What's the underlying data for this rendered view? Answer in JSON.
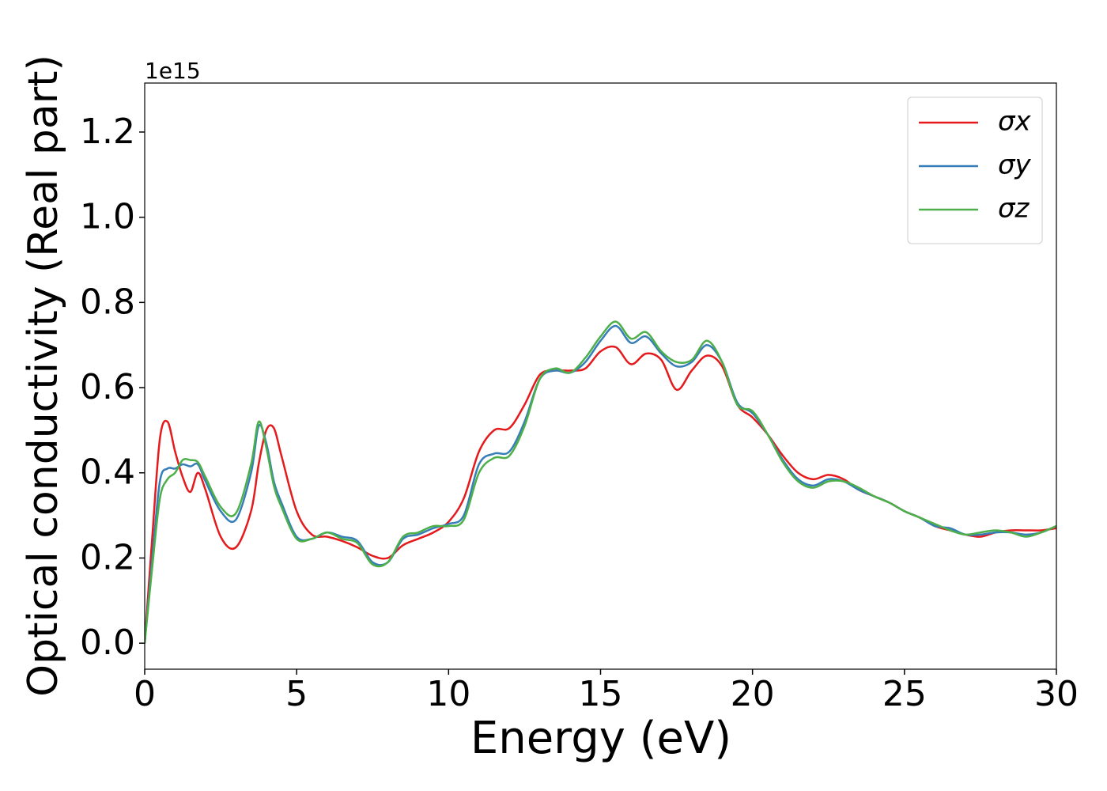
{
  "chart_data": {
    "type": "line",
    "x_label": "Energy (eV)",
    "y_label": "Optical conductivity (Real part)",
    "y_offset_label": "1e15",
    "xlim": [
      0,
      30
    ],
    "xticks": [
      0,
      5,
      10,
      15,
      20,
      25,
      30
    ],
    "ylim": [
      -0.061,
      1.315
    ],
    "yticks": [
      {
        "value": 0,
        "label": "0.0"
      },
      0.2,
      0.4,
      0.6,
      0.8,
      {
        "value": 1,
        "label": "1.0"
      },
      1.2
    ],
    "grid": false,
    "legend": "upper right",
    "x": [
      0,
      0.25,
      0.5,
      0.75,
      1,
      1.25,
      1.5,
      1.75,
      2,
      2.5,
      3,
      3.5,
      3.75,
      4,
      4.25,
      4.5,
      5,
      5.5,
      6,
      6.5,
      7,
      7.5,
      8,
      8.5,
      9,
      9.5,
      10,
      10.5,
      11,
      11.5,
      12,
      12.5,
      13,
      13.5,
      14,
      14.5,
      15,
      15.5,
      16,
      16.5,
      17,
      17.5,
      18,
      18.5,
      19,
      19.5,
      20,
      20.5,
      21,
      21.5,
      22,
      22.5,
      23,
      23.5,
      24,
      24.5,
      25,
      25.5,
      26,
      26.5,
      27,
      27.5,
      28,
      28.5,
      29,
      29.5,
      30
    ],
    "series": [
      {
        "name": "σx",
        "color": "#e41a1c",
        "values": [
          0,
          0.25,
          0.48,
          0.52,
          0.45,
          0.39,
          0.355,
          0.4,
          0.36,
          0.25,
          0.225,
          0.31,
          0.42,
          0.5,
          0.505,
          0.44,
          0.31,
          0.255,
          0.25,
          0.24,
          0.225,
          0.205,
          0.2,
          0.23,
          0.245,
          0.26,
          0.285,
          0.34,
          0.45,
          0.5,
          0.505,
          0.56,
          0.63,
          0.64,
          0.64,
          0.645,
          0.685,
          0.695,
          0.655,
          0.68,
          0.665,
          0.595,
          0.64,
          0.675,
          0.65,
          0.56,
          0.53,
          0.49,
          0.44,
          0.4,
          0.385,
          0.395,
          0.385,
          0.36,
          0.345,
          0.33,
          0.31,
          0.295,
          0.275,
          0.265,
          0.255,
          0.25,
          0.26,
          0.265,
          0.265,
          0.265,
          0.27
        ]
      },
      {
        "name": "σy",
        "color": "#377eb8",
        "values": [
          0,
          0.2,
          0.38,
          0.41,
          0.41,
          0.42,
          0.415,
          0.42,
          0.38,
          0.31,
          0.29,
          0.4,
          0.51,
          0.47,
          0.38,
          0.33,
          0.25,
          0.245,
          0.26,
          0.25,
          0.24,
          0.19,
          0.19,
          0.245,
          0.255,
          0.27,
          0.28,
          0.3,
          0.42,
          0.445,
          0.45,
          0.52,
          0.62,
          0.64,
          0.635,
          0.66,
          0.71,
          0.745,
          0.705,
          0.72,
          0.68,
          0.65,
          0.66,
          0.7,
          0.66,
          0.565,
          0.54,
          0.49,
          0.43,
          0.385,
          0.37,
          0.385,
          0.38,
          0.36,
          0.345,
          0.33,
          0.31,
          0.295,
          0.275,
          0.27,
          0.255,
          0.255,
          0.26,
          0.26,
          0.255,
          0.26,
          0.275
        ]
      },
      {
        "name": "σz",
        "color": "#4daf4a",
        "values": [
          0,
          0.18,
          0.34,
          0.385,
          0.4,
          0.43,
          0.43,
          0.425,
          0.39,
          0.32,
          0.305,
          0.42,
          0.52,
          0.46,
          0.37,
          0.32,
          0.245,
          0.245,
          0.26,
          0.245,
          0.235,
          0.185,
          0.19,
          0.25,
          0.26,
          0.275,
          0.275,
          0.29,
          0.4,
          0.435,
          0.44,
          0.51,
          0.62,
          0.645,
          0.635,
          0.67,
          0.72,
          0.755,
          0.715,
          0.73,
          0.685,
          0.66,
          0.665,
          0.71,
          0.66,
          0.56,
          0.545,
          0.49,
          0.425,
          0.38,
          0.365,
          0.38,
          0.38,
          0.365,
          0.345,
          0.33,
          0.31,
          0.295,
          0.28,
          0.265,
          0.255,
          0.26,
          0.265,
          0.26,
          0.25,
          0.26,
          0.275
        ]
      }
    ]
  }
}
